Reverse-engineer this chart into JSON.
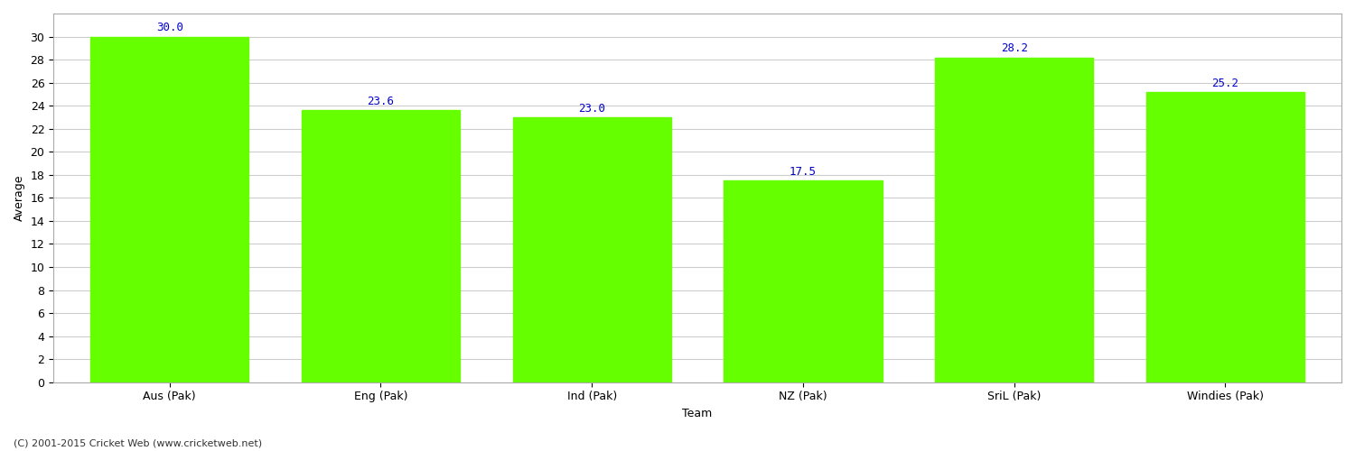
{
  "categories": [
    "Aus (Pak)",
    "Eng (Pak)",
    "Ind (Pak)",
    "NZ (Pak)",
    "SriL (Pak)",
    "Windies (Pak)"
  ],
  "values": [
    30.0,
    23.6,
    23.0,
    17.5,
    28.2,
    25.2
  ],
  "bar_color": "#66ff00",
  "bar_edge_color": "#66ff00",
  "label_color": "#0000cc",
  "xlabel": "Team",
  "ylabel": "Average",
  "ylim": [
    0,
    32
  ],
  "yticks": [
    0,
    2,
    4,
    6,
    8,
    10,
    12,
    14,
    16,
    18,
    20,
    22,
    24,
    26,
    28,
    30
  ],
  "grid_color": "#cccccc",
  "background_color": "#ffffff",
  "footer_text": "(C) 2001-2015 Cricket Web (www.cricketweb.net)",
  "label_fontsize": 9,
  "axis_label_fontsize": 9,
  "footer_fontsize": 8,
  "bar_width": 0.75
}
